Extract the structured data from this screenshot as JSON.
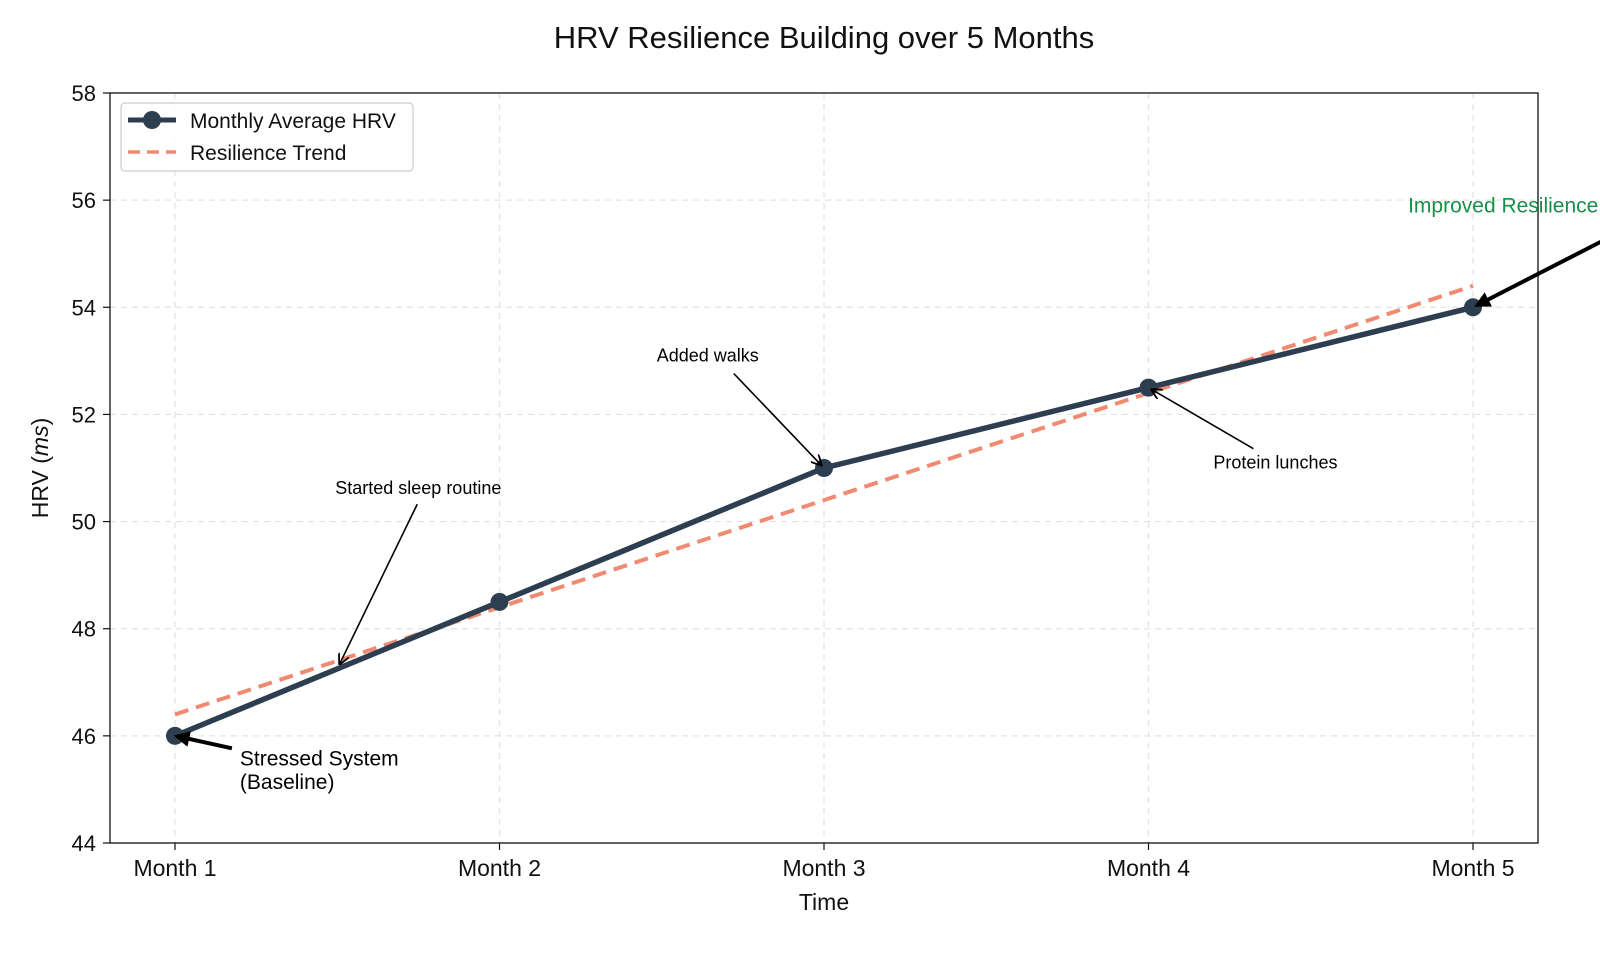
{
  "chart_data": {
    "type": "line",
    "title": "HRV Resilience Building over 5 Months",
    "xlabel": "Time",
    "ylabel_prefix": "HRV (",
    "ylabel_unit": "ms",
    "ylabel_suffix": ")",
    "categories": [
      "Month 1",
      "Month 2",
      "Month 3",
      "Month 4",
      "Month 5"
    ],
    "ylim": [
      44,
      58
    ],
    "yticks": [
      44,
      46,
      48,
      50,
      52,
      54,
      56,
      58
    ],
    "grid": true,
    "legend_position": "top-left",
    "series": [
      {
        "name": "Monthly Average HRV",
        "values": [
          46.0,
          48.5,
          51.0,
          52.5,
          54.0
        ],
        "color": "#2c3e50",
        "style": "solid",
        "markers": true
      },
      {
        "name": "Resilience Trend",
        "values": [
          46.4,
          48.4,
          50.4,
          52.4,
          54.4
        ],
        "color": "#f08a72",
        "style": "dashed",
        "markers": false
      }
    ],
    "annotations": [
      {
        "lines": [
          "Stressed System",
          "(Baseline)"
        ],
        "x": 0.0,
        "y": 46.0,
        "text_x": 0.2,
        "text_y": 45.6,
        "arrow": "bold",
        "color": "#000000"
      },
      {
        "lines": [
          "Started sleep routine"
        ],
        "x": 0.5,
        "y": 47.25,
        "text_x": 0.5,
        "text_y": 50.1,
        "arrow": "thin",
        "color": "#000000"
      },
      {
        "lines": [
          "Added walks"
        ],
        "x": 2.0,
        "y": 51.0,
        "text_x": 1.5,
        "text_y": 53.1,
        "arrow": "thin",
        "color": "#000000"
      },
      {
        "lines": [
          "Protein lunches"
        ],
        "x": 3.0,
        "y": 52.5,
        "text_x": 3.2,
        "text_y": 51.1,
        "arrow": "thin",
        "color": "#000000"
      },
      {
        "lines": [
          "Improved Resilience"
        ],
        "x": 4.0,
        "y": 54.0,
        "text_x": 3.8,
        "text_y": 55.6,
        "arrow": "bold",
        "color": "#1a8f4a"
      }
    ]
  }
}
